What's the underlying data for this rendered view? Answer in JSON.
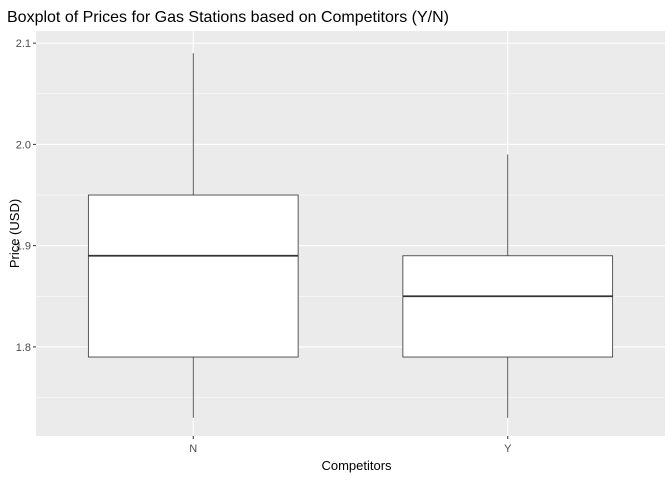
{
  "chart_data": {
    "type": "boxplot",
    "title": "Boxplot of Prices for Gas Stations based on Competitors (Y/N)",
    "xlabel": "Competitors",
    "ylabel": "Price (USD)",
    "ylim": [
      1.712,
      2.112
    ],
    "y_ticks": [
      1.8,
      1.9,
      2.0,
      2.1
    ],
    "y_tick_labels": [
      "1.8",
      "1.9",
      "2.0",
      "2.1"
    ],
    "y_minor": [
      1.75,
      1.85,
      1.95,
      2.05
    ],
    "categories": [
      "N",
      "Y"
    ],
    "boxes": [
      {
        "category": "N",
        "lower_whisker": 1.73,
        "q1": 1.79,
        "median": 1.89,
        "q3": 1.95,
        "upper_whisker": 2.09
      },
      {
        "category": "Y",
        "lower_whisker": 1.73,
        "q1": 1.79,
        "median": 1.85,
        "q3": 1.89,
        "upper_whisker": 1.99
      }
    ],
    "grid": true,
    "background": "#ebebeb",
    "box_fill": "#ffffff",
    "line_color": "#333333"
  }
}
